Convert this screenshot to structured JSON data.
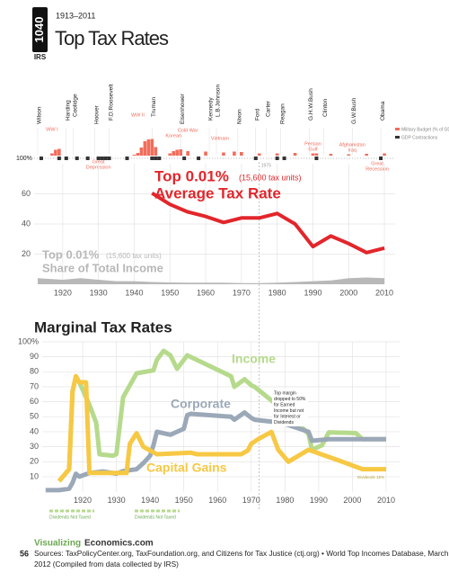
{
  "header": {
    "badge": "1040",
    "badge_sub": "IRS",
    "years": "1913–2011",
    "title": "Top Tax Rates"
  },
  "chart_data": [
    {
      "type": "timeline",
      "xlim": [
        1912,
        2013
      ],
      "presidents": [
        {
          "name": "Wilson",
          "year": 1913
        },
        {
          "name": "Harding",
          "year": 1921
        },
        {
          "name": "Coolidge",
          "year": 1923
        },
        {
          "name": "Hoover",
          "year": 1929
        },
        {
          "name": "F.D.Roosevelt",
          "year": 1933
        },
        {
          "name": "Truman",
          "year": 1945
        },
        {
          "name": "Eisenhower",
          "year": 1953
        },
        {
          "name": "Kennedy",
          "year": 1961
        },
        {
          "name": "L.B.Johnson",
          "year": 1963
        },
        {
          "name": "Nixon",
          "year": 1969
        },
        {
          "name": "Ford",
          "year": 1974
        },
        {
          "name": "Carter",
          "year": 1977
        },
        {
          "name": "Reagan",
          "year": 1981
        },
        {
          "name": "G.H.W.Bush",
          "year": 1989
        },
        {
          "name": "Clinton",
          "year": 1993
        },
        {
          "name": "G.W.Bush",
          "year": 2001
        },
        {
          "name": "Obama",
          "year": 2009
        }
      ],
      "wars": [
        {
          "lines": [
            "WW I"
          ],
          "year": 1917
        },
        {
          "lines": [
            "Great",
            "Depression"
          ],
          "year": 1930
        },
        {
          "lines": [
            "WW II"
          ],
          "year": 1941
        },
        {
          "lines": [
            "Cold War"
          ],
          "year": 1955
        },
        {
          "lines": [
            "Korean"
          ],
          "year": 1951
        },
        {
          "lines": [
            "Vietnam"
          ],
          "year": 1964
        },
        {
          "lines": [
            "Persian",
            "Gulf"
          ],
          "year": 1990
        },
        {
          "lines": [
            "Afghanistan",
            "Iraq"
          ],
          "year": 2001
        },
        {
          "lines": [
            "Great",
            "Recession"
          ],
          "year": 2008
        }
      ],
      "baseline_label": "100%",
      "military_budget": {
        "name": "Military Budget (% of GDP)",
        "color": "#f26d5b",
        "x": [
          1917,
          1918,
          1919,
          1940,
          1941,
          1942,
          1943,
          1944,
          1945,
          1946,
          1950,
          1951,
          1952,
          1953,
          1955,
          1960,
          1965,
          1968,
          1970,
          1975,
          1980,
          1985,
          1990,
          1991,
          1995,
          2000,
          2005,
          2010
        ],
        "values": [
          5,
          13,
          15,
          2,
          6,
          18,
          32,
          36,
          37,
          19,
          5,
          10,
          13,
          14,
          10,
          9,
          7,
          9,
          8,
          5,
          5,
          6,
          5,
          5,
          4,
          3,
          4,
          5
        ]
      },
      "gdp_contractions": {
        "name": "GDP Contractions",
        "color": "#333",
        "x": [
          1914,
          1919,
          1921,
          1924,
          1927,
          1930,
          1931,
          1932,
          1933,
          1938,
          1945,
          1946,
          1947,
          1954,
          1958,
          1974,
          1980,
          1982,
          1991,
          2009
        ]
      }
    },
    {
      "type": "line",
      "xlim": [
        1912,
        2013
      ],
      "ylim": [
        0,
        80
      ],
      "yticks": [
        20,
        40,
        60
      ],
      "xticks": [
        1920,
        1930,
        1940,
        1950,
        1960,
        1970,
        1980,
        1990,
        2000,
        2010
      ],
      "grid": true,
      "marker_year": 1975,
      "series": [
        {
          "name": "Average Tax Rate",
          "prefix": "Top 0.01%",
          "note": "(15,600 tax units)",
          "color": "#e2262b",
          "kind": "line",
          "x": [
            1945,
            1950,
            1955,
            1960,
            1965,
            1970,
            1975,
            1980,
            1985,
            1990,
            1995,
            2000,
            2005,
            2010
          ],
          "values": [
            60.5,
            53,
            48,
            45,
            41,
            44,
            44,
            47,
            40,
            25,
            32,
            27,
            21,
            24
          ]
        },
        {
          "name": "Share of Total Income",
          "prefix": "Top 0.01%",
          "note": "(15,600 tax units)",
          "color": "#b8b8b8",
          "kind": "area",
          "x": [
            1913,
            1920,
            1925,
            1930,
            1935,
            1940,
            1945,
            1950,
            1955,
            1960,
            1965,
            1970,
            1975,
            1980,
            1985,
            1990,
            1995,
            2000,
            2005,
            2010
          ],
          "values": [
            4,
            3,
            4,
            3,
            2,
            2,
            1.5,
            1.2,
            1,
            1,
            1,
            0.8,
            0.8,
            1,
            1.5,
            2,
            2.5,
            4,
            4.5,
            4
          ]
        }
      ]
    },
    {
      "type": "line",
      "title": "Marginal Tax Rates",
      "xlim": [
        1908,
        2014
      ],
      "ylim": [
        0,
        100
      ],
      "yticks": [
        10,
        20,
        30,
        40,
        50,
        60,
        70,
        80,
        90,
        {
          "value": 100,
          "label": "100%"
        }
      ],
      "xticks": [
        1920,
        1930,
        1940,
        1950,
        1960,
        1970,
        1980,
        1990,
        2000,
        2010
      ],
      "grid": true,
      "series": [
        {
          "name": "Income",
          "color": "#b6da8c",
          "x": [
            1913,
            1916,
            1917,
            1918,
            1919,
            1922,
            1924,
            1925,
            1929,
            1930,
            1932,
            1936,
            1941,
            1942,
            1944,
            1946,
            1948,
            1951,
            1964,
            1965,
            1968,
            1970,
            1971,
            1982,
            1987,
            1988,
            1991,
            1993,
            2001,
            2003,
            2010
          ],
          "values": [
            7,
            15,
            67,
            77,
            73,
            58,
            46,
            25,
            24,
            25,
            63,
            79,
            81,
            88,
            94,
            91,
            82,
            91,
            77,
            70,
            75,
            71,
            70,
            50,
            38.5,
            28,
            31,
            39.6,
            39.1,
            35,
            35
          ]
        },
        {
          "name": "Corporate",
          "color": "#9ba8b8",
          "x": [
            1909,
            1913,
            1916,
            1917,
            1918,
            1919,
            1922,
            1926,
            1930,
            1932,
            1936,
            1938,
            1940,
            1941,
            1942,
            1946,
            1950,
            1951,
            1952,
            1964,
            1965,
            1968,
            1970,
            1971,
            1979,
            1987,
            1988,
            1993,
            2010
          ],
          "values": [
            1,
            1,
            2,
            6,
            12,
            10,
            12.5,
            13.5,
            12,
            13.75,
            15,
            19,
            24,
            31,
            40,
            38,
            42,
            51,
            52,
            50,
            48,
            52.8,
            49.2,
            48,
            46,
            40,
            34,
            35,
            35
          ]
        },
        {
          "name": "Capital Gains",
          "color": "#f7c843",
          "x": [
            1913,
            1916,
            1917,
            1918,
            1919,
            1921,
            1922,
            1933,
            1934,
            1936,
            1938,
            1942,
            1952,
            1954,
            1967,
            1969,
            1970,
            1972,
            1976,
            1978,
            1981,
            1987,
            1997,
            2003,
            2010
          ],
          "values": [
            7,
            15,
            67,
            77,
            73,
            73,
            12.5,
            12.5,
            32,
            39,
            30,
            25,
            26,
            25,
            25,
            27.5,
            32,
            35,
            39.9,
            28,
            20,
            28,
            20,
            15,
            15
          ]
        }
      ],
      "annotation": [
        "Top margin",
        "dropped to 50%",
        "for Earned",
        "Income but not",
        "for Interest or",
        "Dividends"
      ],
      "dividends_15": "Dividends 15%",
      "dividends_not_taxed": [
        "Dividends Not Taxed",
        "Dividends Not Taxed"
      ]
    }
  ],
  "footer": {
    "site_a": "Visualizing",
    "site_b": "Economics.com",
    "page": "56",
    "sources": [
      "Sources: TaxPolicyCenter.org, TaxFoundation.org, and Citizens for Tax Justice (ctj.org) • World Top Incomes Database, March",
      "2012 (Compiled from data collected by IRS)"
    ]
  }
}
